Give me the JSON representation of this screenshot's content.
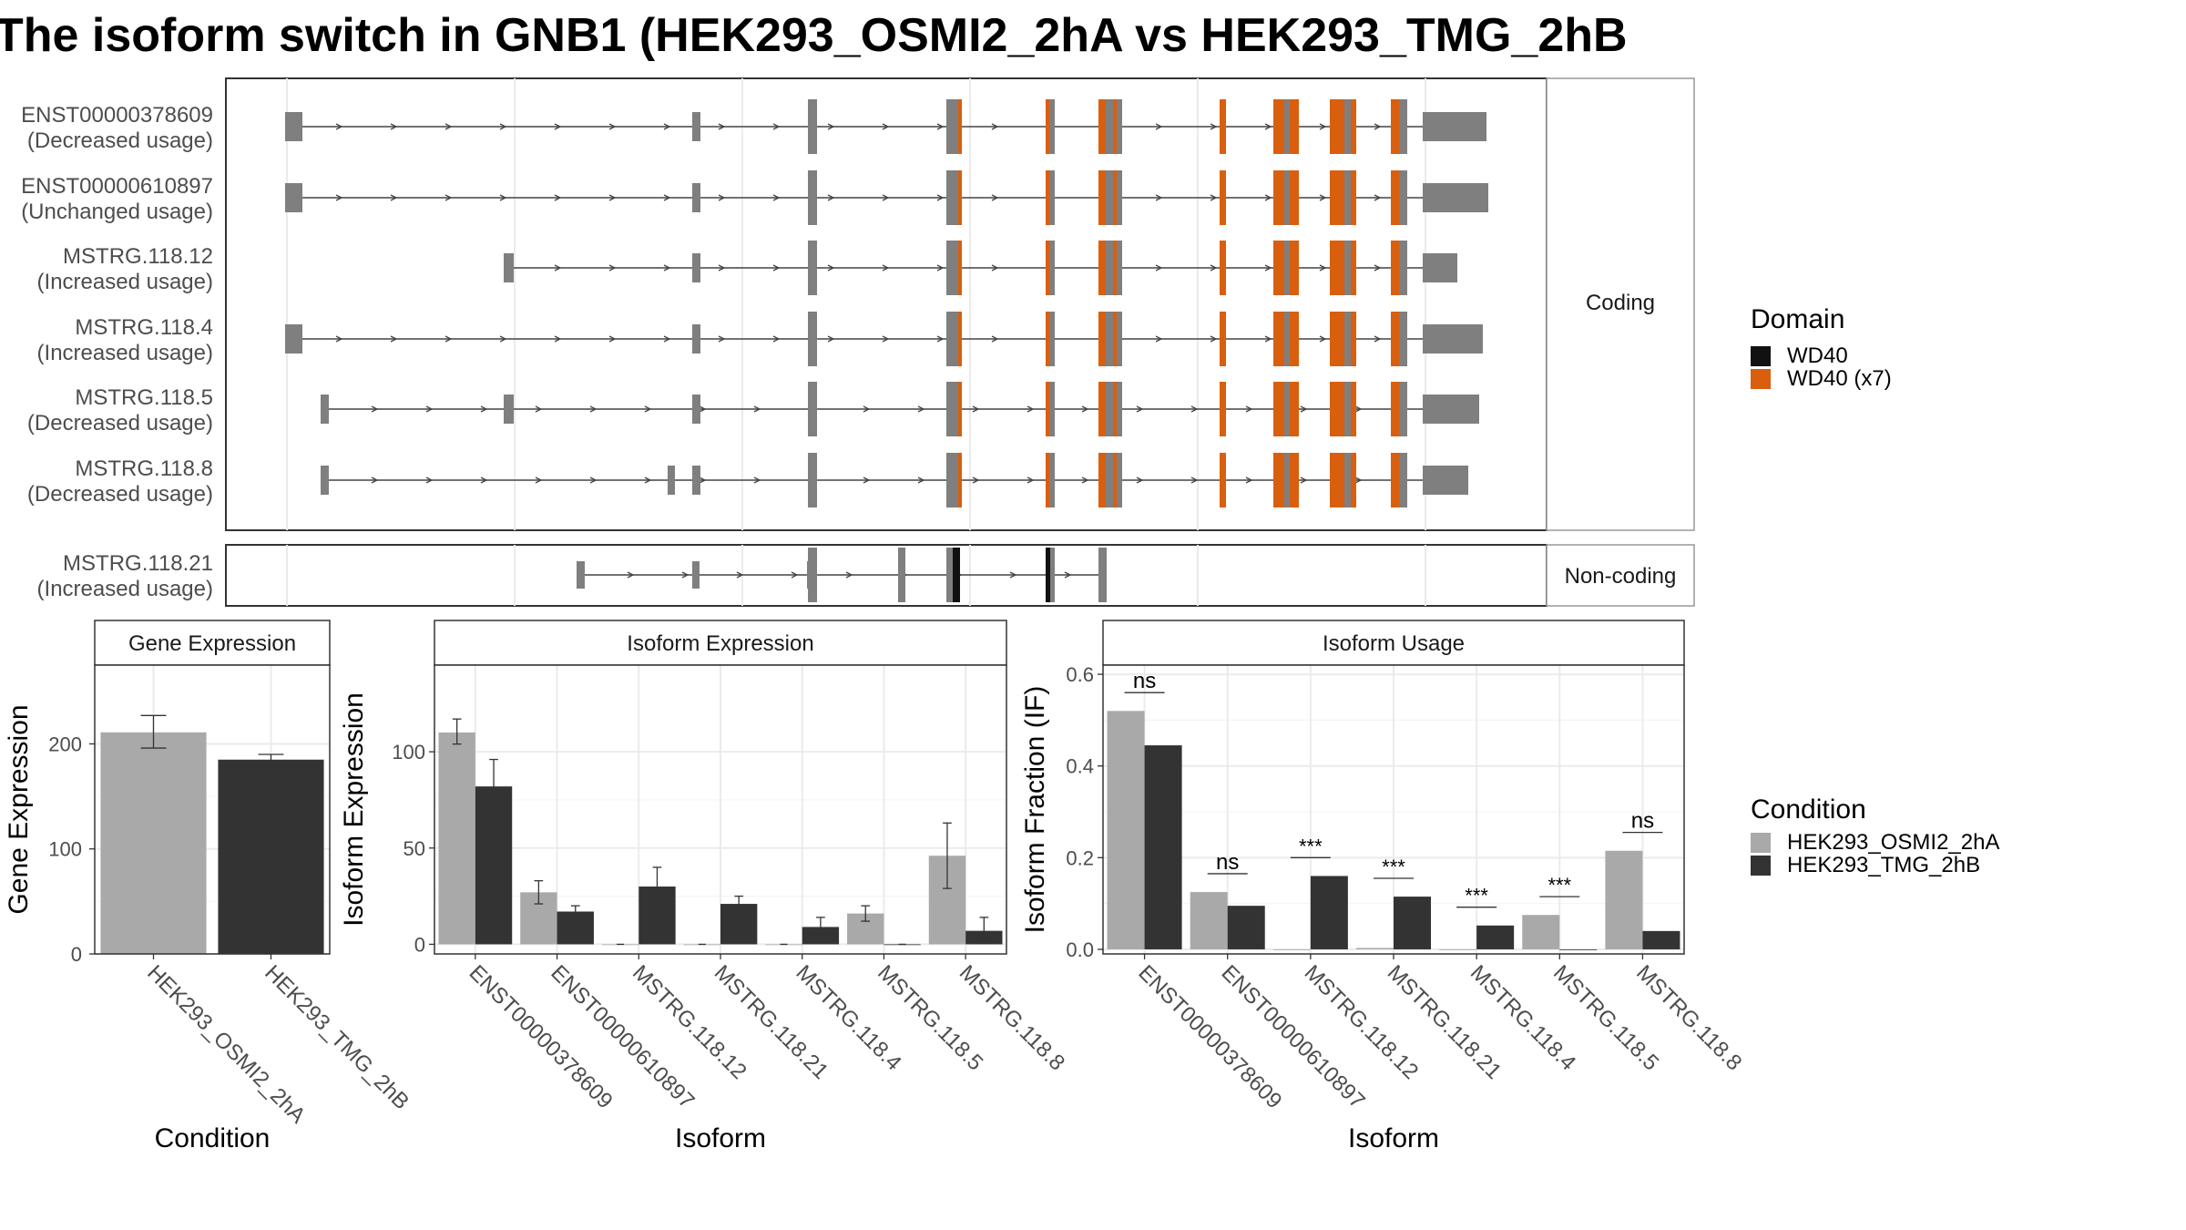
{
  "title": "The isoform switch in GNB1 (HEK293_OSMI2_2hA vs HEK293_TMG_2hB",
  "colors": {
    "exon": "#7f7f7f",
    "wd40": "#111111",
    "wd40x7": "#d95f0e",
    "cond_a": "#a9a9a9",
    "cond_b": "#333333"
  },
  "structure": {
    "coding_label": "Coding",
    "noncoding_label": "Non-coding",
    "transcripts": [
      {
        "id": "ENST00000378609",
        "usage": "(Decreased usage)"
      },
      {
        "id": "ENST00000610897",
        "usage": "(Unchanged usage)"
      },
      {
        "id": "MSTRG.118.12",
        "usage": "(Increased usage)"
      },
      {
        "id": "MSTRG.118.4",
        "usage": "(Increased usage)"
      },
      {
        "id": "MSTRG.118.5",
        "usage": "(Decreased usage)"
      },
      {
        "id": "MSTRG.118.8",
        "usage": "(Decreased usage)"
      }
    ],
    "noncoding_transcripts": [
      {
        "id": "MSTRG.118.21",
        "usage": "(Increased usage)"
      }
    ]
  },
  "legend_domain": {
    "title": "Domain",
    "items": [
      {
        "label": "WD40",
        "color": "#111111"
      },
      {
        "label": "WD40 (x7)",
        "color": "#d95f0e"
      }
    ]
  },
  "legend_condition": {
    "title": "Condition",
    "items": [
      {
        "label": "HEK293_OSMI2_2hA",
        "color": "#a9a9a9"
      },
      {
        "label": "HEK293_TMG_2hB",
        "color": "#333333"
      }
    ]
  },
  "chart_data": [
    {
      "type": "bar",
      "title": "Gene Expression",
      "xlabel": "Condition",
      "ylabel": "Gene Expression",
      "categories": [
        "HEK293_OSMI2_2hA",
        "HEK293_TMG_2hB"
      ],
      "values": [
        211,
        185
      ],
      "errors": [
        [
          196,
          227
        ],
        [
          181,
          190
        ]
      ],
      "ylim": [
        0,
        275
      ],
      "yticks": [
        0,
        100,
        200
      ],
      "grid": true
    },
    {
      "type": "bar",
      "title": "Isoform Expression",
      "xlabel": "Isoform",
      "ylabel": "Isoform Expression",
      "categories": [
        "ENST00000378609",
        "ENST00000610897",
        "MSTRG.118.12",
        "MSTRG.118.21",
        "MSTRG.118.4",
        "MSTRG.118.5",
        "MSTRG.118.8"
      ],
      "series": [
        {
          "name": "HEK293_OSMI2_2hA",
          "values": [
            110,
            27,
            0,
            0,
            0,
            16,
            46
          ],
          "errors": [
            [
              104,
              117
            ],
            [
              21,
              33
            ],
            [
              0,
              0
            ],
            [
              0,
              0
            ],
            [
              0,
              0
            ],
            [
              12,
              20
            ],
            [
              29,
              63
            ]
          ]
        },
        {
          "name": "HEK293_TMG_2hB",
          "values": [
            82,
            17,
            30,
            21,
            9,
            0,
            7
          ],
          "errors": [
            [
              67,
              96
            ],
            [
              15,
              20
            ],
            [
              21,
              40
            ],
            [
              17,
              25
            ],
            [
              5,
              14
            ],
            [
              0,
              0
            ],
            [
              2,
              14
            ]
          ]
        }
      ],
      "ylim": [
        -5,
        145
      ],
      "yticks": [
        0,
        50,
        100
      ],
      "grid": true
    },
    {
      "type": "bar",
      "title": "Isoform Usage",
      "xlabel": "Isoform",
      "ylabel": "Isoform Fraction (IF)",
      "categories": [
        "ENST00000378609",
        "ENST00000610897",
        "MSTRG.118.12",
        "MSTRG.118.21",
        "MSTRG.118.4",
        "MSTRG.118.5",
        "MSTRG.118.8"
      ],
      "series": [
        {
          "name": "HEK293_OSMI2_2hA",
          "values": [
            0.52,
            0.125,
            0.0,
            0.003,
            0.0,
            0.075,
            0.215
          ]
        },
        {
          "name": "HEK293_TMG_2hB",
          "values": [
            0.445,
            0.095,
            0.16,
            0.115,
            0.052,
            0.0,
            0.04
          ]
        }
      ],
      "significance": [
        "ns",
        "ns",
        "***",
        "***",
        "***",
        "***",
        "ns"
      ],
      "ylim": [
        -0.01,
        0.62
      ],
      "yticks": [
        0.0,
        0.2,
        0.4,
        0.6
      ],
      "grid": true
    }
  ]
}
